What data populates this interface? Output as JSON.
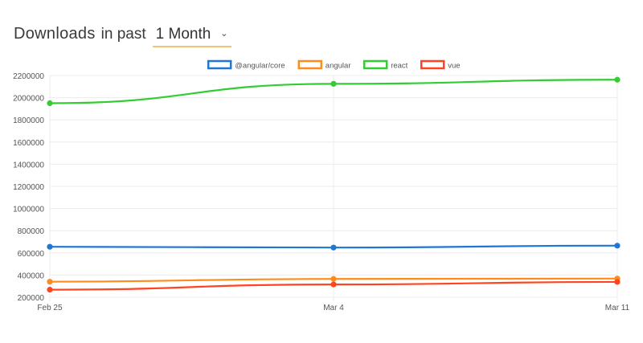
{
  "header": {
    "title": "Downloads",
    "in_past": "in past",
    "period": "1 Month",
    "chevron_icon": "chevron-down-icon"
  },
  "chart_data": {
    "type": "line",
    "x": [
      "Feb 25",
      "Mar 4",
      "Mar 11"
    ],
    "ylim": [
      200000,
      2200000
    ],
    "yticks": [
      200000,
      400000,
      600000,
      800000,
      1000000,
      1200000,
      1400000,
      1600000,
      1800000,
      2000000,
      2200000
    ],
    "legend_position": "top",
    "grid": true,
    "series": [
      {
        "name": "@angular/core",
        "color": "#1f77d4",
        "values": [
          655000,
          648000,
          665000
        ]
      },
      {
        "name": "angular",
        "color": "#ff8c1a",
        "values": [
          340000,
          365000,
          368000
        ]
      },
      {
        "name": "react",
        "color": "#33cc33",
        "values": [
          1950000,
          2125000,
          2162000
        ]
      },
      {
        "name": "vue",
        "color": "#ff4422",
        "values": [
          268000,
          315000,
          338000
        ]
      }
    ]
  }
}
